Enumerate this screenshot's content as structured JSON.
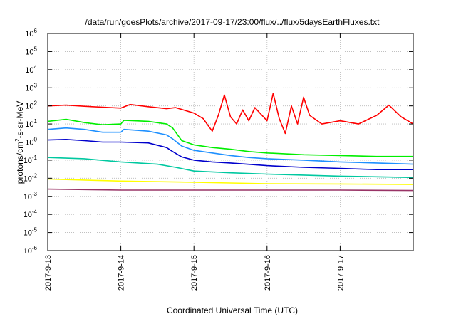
{
  "chart_data": {
    "type": "line",
    "title": "/data/run/goesPlots/archive/2017-09-17/23:00/flux/../flux/5daysEarthFluxes.txt",
    "xlabel": "Coordinated Universal Time (UTC)",
    "ylabel": "protons/cm²-s-sr-MeV",
    "ylabel_parts": {
      "pre": "protons/cm",
      "sup": "2",
      "post": "-s-sr-MeV"
    },
    "yscale": "log",
    "ylim": [
      "1e-6",
      "1e6"
    ],
    "y_ticks": [
      {
        "base": "10",
        "exp": "6"
      },
      {
        "base": "10",
        "exp": "5"
      },
      {
        "base": "10",
        "exp": "4"
      },
      {
        "base": "10",
        "exp": "3"
      },
      {
        "base": "10",
        "exp": "2"
      },
      {
        "base": "10",
        "exp": "1"
      },
      {
        "base": "10",
        "exp": "0"
      },
      {
        "base": "10",
        "exp": "-1"
      },
      {
        "base": "10",
        "exp": "-2"
      },
      {
        "base": "10",
        "exp": "-3"
      },
      {
        "base": "10",
        "exp": "-4"
      },
      {
        "base": "10",
        "exp": "-5"
      },
      {
        "base": "10",
        "exp": "-6"
      }
    ],
    "x_ticks": [
      "2017-9-13",
      "2017-9-14",
      "2017-9-15",
      "2017-9-16",
      "2017-9-17"
    ],
    "xlim": [
      "2017-09-13T00:00",
      "2017-09-18T00:00"
    ],
    "grid": true,
    "series": [
      {
        "color": "#ff0000",
        "points": [
          [
            "2017-09-13T00:00",
            100
          ],
          [
            "2017-09-13T06:00",
            110
          ],
          [
            "2017-09-13T12:00",
            95
          ],
          [
            "2017-09-13T18:00",
            85
          ],
          [
            "2017-09-14T00:00",
            75
          ],
          [
            "2017-09-14T03:00",
            120
          ],
          [
            "2017-09-14T09:00",
            90
          ],
          [
            "2017-09-14T15:00",
            70
          ],
          [
            "2017-09-14T18:00",
            80
          ],
          [
            "2017-09-15T00:00",
            40
          ],
          [
            "2017-09-15T03:00",
            20
          ],
          [
            "2017-09-15T06:00",
            4
          ],
          [
            "2017-09-15T08:00",
            30
          ],
          [
            "2017-09-15T10:00",
            400
          ],
          [
            "2017-09-15T12:00",
            25
          ],
          [
            "2017-09-15T14:00",
            10
          ],
          [
            "2017-09-15T16:00",
            60
          ],
          [
            "2017-09-15T18:00",
            15
          ],
          [
            "2017-09-15T20:00",
            80
          ],
          [
            "2017-09-16T00:00",
            15
          ],
          [
            "2017-09-16T02:00",
            500
          ],
          [
            "2017-09-16T04:00",
            20
          ],
          [
            "2017-09-16T06:00",
            3
          ],
          [
            "2017-09-16T08:00",
            100
          ],
          [
            "2017-09-16T10:00",
            10
          ],
          [
            "2017-09-16T12:00",
            300
          ],
          [
            "2017-09-16T14:00",
            30
          ],
          [
            "2017-09-16T18:00",
            10
          ],
          [
            "2017-09-17T00:00",
            15
          ],
          [
            "2017-09-17T06:00",
            10
          ],
          [
            "2017-09-17T12:00",
            30
          ],
          [
            "2017-09-17T16:00",
            110
          ],
          [
            "2017-09-17T20:00",
            25
          ],
          [
            "2017-09-18T00:00",
            10
          ]
        ]
      },
      {
        "color": "#00ee00",
        "points": [
          [
            "2017-09-13T00:00",
            14
          ],
          [
            "2017-09-13T06:00",
            18
          ],
          [
            "2017-09-13T12:00",
            12
          ],
          [
            "2017-09-13T18:00",
            9
          ],
          [
            "2017-09-14T00:00",
            10
          ],
          [
            "2017-09-14T01:00",
            16
          ],
          [
            "2017-09-14T09:00",
            14
          ],
          [
            "2017-09-14T15:00",
            10
          ],
          [
            "2017-09-14T17:00",
            6
          ],
          [
            "2017-09-14T20:00",
            1.2
          ],
          [
            "2017-09-15T00:00",
            0.7
          ],
          [
            "2017-09-15T06:00",
            0.5
          ],
          [
            "2017-09-15T12:00",
            0.4
          ],
          [
            "2017-09-15T18:00",
            0.3
          ],
          [
            "2017-09-16T00:00",
            0.25
          ],
          [
            "2017-09-16T12:00",
            0.2
          ],
          [
            "2017-09-17T00:00",
            0.18
          ],
          [
            "2017-09-17T12:00",
            0.16
          ],
          [
            "2017-09-18T00:00",
            0.16
          ]
        ]
      },
      {
        "color": "#1e90ff",
        "points": [
          [
            "2017-09-13T00:00",
            5
          ],
          [
            "2017-09-13T06:00",
            6
          ],
          [
            "2017-09-13T12:00",
            5
          ],
          [
            "2017-09-13T18:00",
            3.5
          ],
          [
            "2017-09-14T00:00",
            3.5
          ],
          [
            "2017-09-14T01:00",
            5
          ],
          [
            "2017-09-14T09:00",
            4
          ],
          [
            "2017-09-14T15:00",
            2.5
          ],
          [
            "2017-09-14T17:00",
            1.5
          ],
          [
            "2017-09-14T20:00",
            0.6
          ],
          [
            "2017-09-15T00:00",
            0.35
          ],
          [
            "2017-09-15T06:00",
            0.25
          ],
          [
            "2017-09-15T12:00",
            0.18
          ],
          [
            "2017-09-15T18:00",
            0.14
          ],
          [
            "2017-09-16T00:00",
            0.12
          ],
          [
            "2017-09-16T12:00",
            0.1
          ],
          [
            "2017-09-17T00:00",
            0.08
          ],
          [
            "2017-09-17T12:00",
            0.07
          ],
          [
            "2017-09-18T00:00",
            0.06
          ]
        ]
      },
      {
        "color": "#0000cc",
        "points": [
          [
            "2017-09-13T00:00",
            1.3
          ],
          [
            "2017-09-13T06:00",
            1.4
          ],
          [
            "2017-09-13T12:00",
            1.2
          ],
          [
            "2017-09-13T18:00",
            1.0
          ],
          [
            "2017-09-14T00:00",
            1.0
          ],
          [
            "2017-09-14T09:00",
            0.9
          ],
          [
            "2017-09-14T15:00",
            0.5
          ],
          [
            "2017-09-14T17:00",
            0.3
          ],
          [
            "2017-09-14T20:00",
            0.15
          ],
          [
            "2017-09-15T00:00",
            0.1
          ],
          [
            "2017-09-15T06:00",
            0.08
          ],
          [
            "2017-09-15T12:00",
            0.07
          ],
          [
            "2017-09-16T00:00",
            0.05
          ],
          [
            "2017-09-16T12:00",
            0.04
          ],
          [
            "2017-09-17T00:00",
            0.035
          ],
          [
            "2017-09-17T12:00",
            0.03
          ],
          [
            "2017-09-18T00:00",
            0.03
          ]
        ]
      },
      {
        "color": "#00c8a0",
        "points": [
          [
            "2017-09-13T00:00",
            0.14
          ],
          [
            "2017-09-13T12:00",
            0.12
          ],
          [
            "2017-09-14T00:00",
            0.08
          ],
          [
            "2017-09-14T12:00",
            0.06
          ],
          [
            "2017-09-14T18:00",
            0.04
          ],
          [
            "2017-09-15T00:00",
            0.025
          ],
          [
            "2017-09-15T12:00",
            0.02
          ],
          [
            "2017-09-16T00:00",
            0.017
          ],
          [
            "2017-09-16T12:00",
            0.015
          ],
          [
            "2017-09-17T00:00",
            0.013
          ],
          [
            "2017-09-17T12:00",
            0.012
          ],
          [
            "2017-09-18T00:00",
            0.011
          ]
        ]
      },
      {
        "color": "#ffff00",
        "points": [
          [
            "2017-09-13T00:00",
            0.009
          ],
          [
            "2017-09-14T00:00",
            0.007
          ],
          [
            "2017-09-15T00:00",
            0.006
          ],
          [
            "2017-09-16T00:00",
            0.005
          ],
          [
            "2017-09-17T00:00",
            0.0048
          ],
          [
            "2017-09-18T00:00",
            0.0045
          ]
        ]
      },
      {
        "color": "#993366",
        "points": [
          [
            "2017-09-13T00:00",
            0.0025
          ],
          [
            "2017-09-14T00:00",
            0.0022
          ],
          [
            "2017-09-15T00:00",
            0.0022
          ],
          [
            "2017-09-16T00:00",
            0.0022
          ],
          [
            "2017-09-17T00:00",
            0.0022
          ],
          [
            "2017-09-18T00:00",
            0.0021
          ]
        ]
      }
    ]
  }
}
